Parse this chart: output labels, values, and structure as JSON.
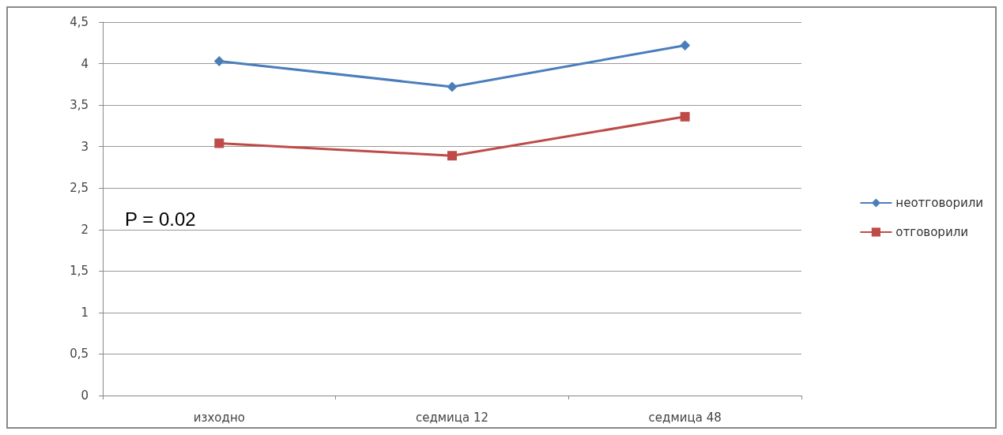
{
  "chart_data": {
    "type": "line",
    "categories": [
      "изходно",
      "седмица 12",
      "седмица 48"
    ],
    "series": [
      {
        "name": "неотговорили",
        "color": "#4a7ebb",
        "marker": "diamond",
        "values": [
          4.03,
          3.72,
          4.22
        ]
      },
      {
        "name": "отговорили",
        "color": "#be4b48",
        "marker": "square",
        "values": [
          3.04,
          2.89,
          3.36
        ]
      }
    ],
    "ylim": [
      0,
      4.5
    ],
    "yticks": [
      0,
      {
        "value": 0.5,
        "label": "0,5"
      },
      1,
      {
        "value": 1.5,
        "label": "1,5"
      },
      2,
      {
        "value": 2.5,
        "label": "2,5"
      },
      3,
      {
        "value": 3.5,
        "label": "3,5"
      },
      4,
      {
        "value": 4.5,
        "label": "4,5"
      }
    ],
    "grid": "y",
    "legend": "right",
    "line_style": "solid",
    "annotations": [
      "P = 0.02"
    ]
  }
}
